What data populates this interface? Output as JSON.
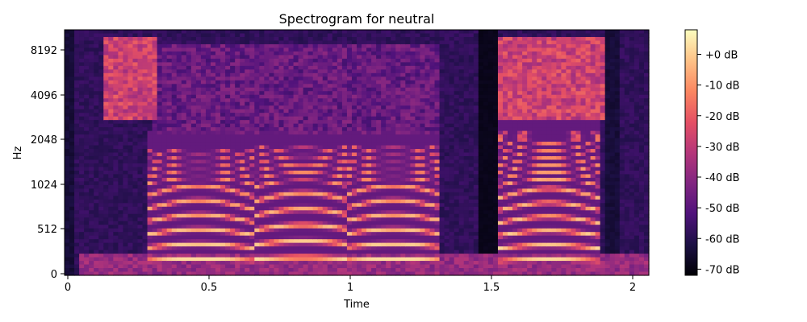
{
  "chart_data": {
    "type": "heatmap",
    "title": "Spectrogram for neutral",
    "xlabel": "Time",
    "ylabel": "Hz",
    "xlim": [
      0,
      2.06
    ],
    "x_ticks": [
      {
        "value": 0,
        "label": "0"
      },
      {
        "value": 0.5,
        "label": "0.5"
      },
      {
        "value": 1,
        "label": "1"
      },
      {
        "value": 1.5,
        "label": "1.5"
      },
      {
        "value": 2,
        "label": "2"
      }
    ],
    "y_scale": "log2-like (mel/symlog)",
    "y_ticks": [
      {
        "value": 0,
        "label": "0"
      },
      {
        "value": 512,
        "label": "512"
      },
      {
        "value": 1024,
        "label": "1024"
      },
      {
        "value": 2048,
        "label": "2048"
      },
      {
        "value": 4096,
        "label": "4096"
      },
      {
        "value": 8192,
        "label": "8192"
      }
    ],
    "colorbar": {
      "range": [
        -72,
        8
      ],
      "ticks": [
        {
          "value": 0,
          "label": "+0 dB"
        },
        {
          "value": -10,
          "label": "-10 dB"
        },
        {
          "value": -20,
          "label": "-20 dB"
        },
        {
          "value": -30,
          "label": "-30 dB"
        },
        {
          "value": -40,
          "label": "-40 dB"
        },
        {
          "value": -50,
          "label": "-50 dB"
        },
        {
          "value": -60,
          "label": "-60 dB"
        },
        {
          "value": -70,
          "label": "-70 dB"
        }
      ],
      "colormap": [
        "#000004",
        "#1c1044",
        "#4f127b",
        "#812581",
        "#b5367a",
        "#e55064",
        "#fb8761",
        "#fec287",
        "#fcfdbf"
      ]
    },
    "voiced_segments": [
      {
        "start": 0.29,
        "end": 0.66,
        "f0": 150,
        "harmonic_top_hz": 1800
      },
      {
        "start": 0.66,
        "end": 0.98,
        "f0": 165,
        "harmonic_top_hz": 1900
      },
      {
        "start": 0.98,
        "end": 1.32,
        "f0": 150,
        "harmonic_top_hz": 1900
      },
      {
        "start": 1.53,
        "end": 1.89,
        "f0": 145,
        "harmonic_top_hz": 2400
      }
    ],
    "fricative_segments": [
      {
        "start": 0.12,
        "end": 0.31,
        "band_hz": [
          3000,
          10000
        ]
      },
      {
        "start": 1.53,
        "end": 1.9,
        "band_hz": [
          3000,
          10000
        ]
      }
    ]
  }
}
